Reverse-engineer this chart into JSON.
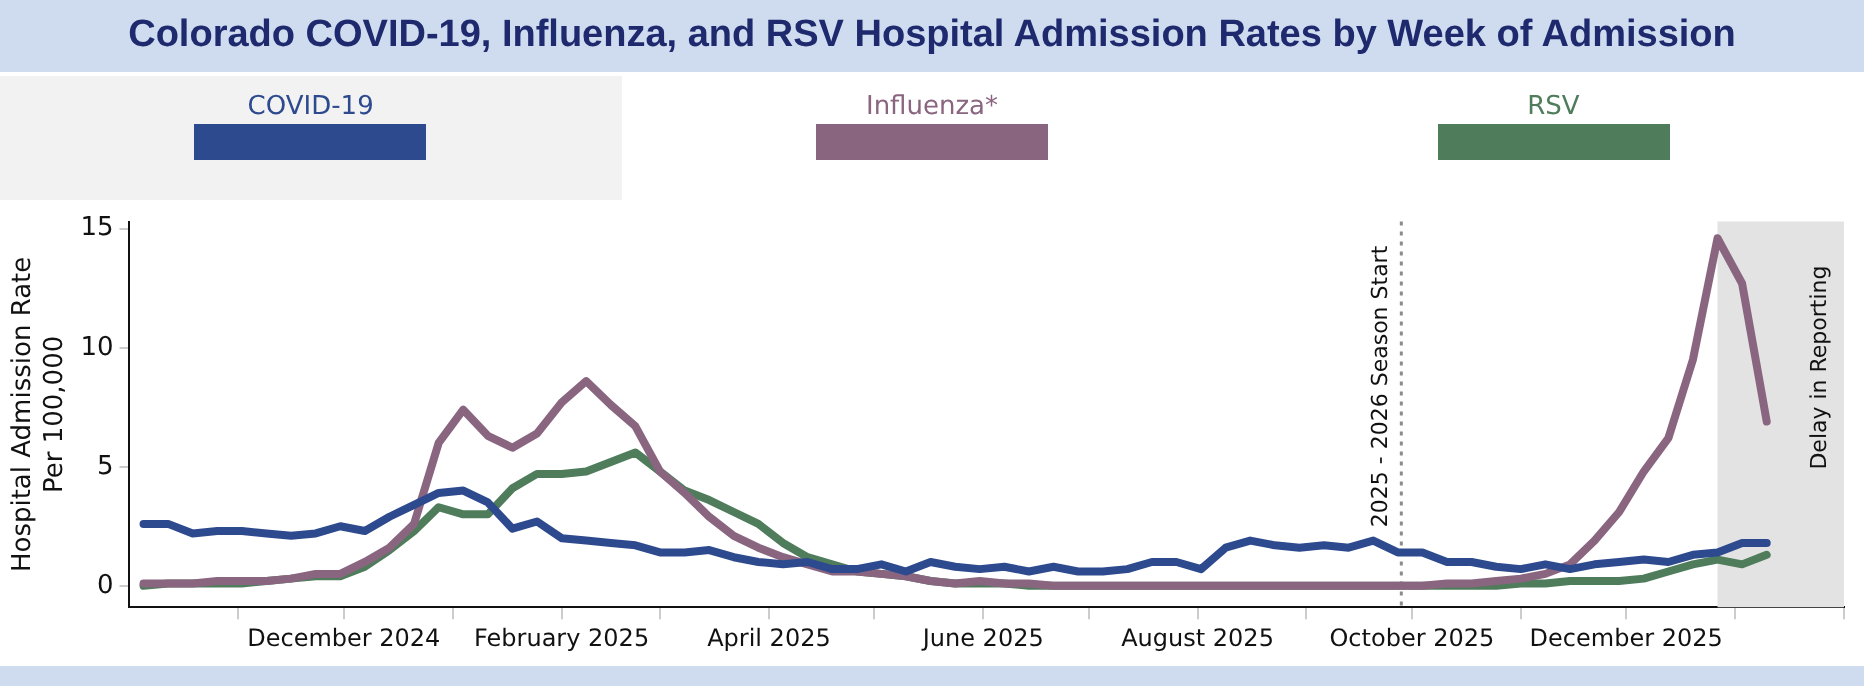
{
  "chart_data": {
    "type": "line",
    "title": "Colorado COVID-19, Influenza, and RSV Hospital Admission Rates by Week of Admission",
    "ylabel": "Hospital Admission Rate\nPer 100,000",
    "x": [
      "2024-10-05",
      "2024-10-12",
      "2024-10-19",
      "2024-10-26",
      "2024-11-02",
      "2024-11-09",
      "2024-11-16",
      "2024-11-23",
      "2024-11-30",
      "2024-12-07",
      "2024-12-14",
      "2024-12-21",
      "2024-12-28",
      "2025-01-04",
      "2025-01-11",
      "2025-01-18",
      "2025-01-25",
      "2025-02-01",
      "2025-02-08",
      "2025-02-15",
      "2025-02-22",
      "2025-03-01",
      "2025-03-08",
      "2025-03-15",
      "2025-03-22",
      "2025-03-29",
      "2025-04-05",
      "2025-04-12",
      "2025-04-19",
      "2025-04-26",
      "2025-05-03",
      "2025-05-10",
      "2025-05-17",
      "2025-05-24",
      "2025-05-31",
      "2025-06-07",
      "2025-06-14",
      "2025-06-21",
      "2025-06-28",
      "2025-07-05",
      "2025-07-12",
      "2025-07-19",
      "2025-07-26",
      "2025-08-02",
      "2025-08-09",
      "2025-08-16",
      "2025-08-23",
      "2025-08-30",
      "2025-09-06",
      "2025-09-13",
      "2025-09-20",
      "2025-09-27",
      "2025-10-04",
      "2025-10-11",
      "2025-10-18",
      "2025-10-25",
      "2025-11-01",
      "2025-11-08",
      "2025-11-15",
      "2025-11-22",
      "2025-11-29",
      "2025-12-06",
      "2025-12-13",
      "2025-12-20",
      "2025-12-27",
      "2026-01-03",
      "2026-01-10"
    ],
    "series": [
      {
        "name": "COVID-19",
        "color": "#2e4a8f",
        "values": [
          2.6,
          2.6,
          2.2,
          2.3,
          2.3,
          2.2,
          2.1,
          2.2,
          2.5,
          2.3,
          2.9,
          3.4,
          3.9,
          4.0,
          3.5,
          2.4,
          2.7,
          2.0,
          1.9,
          1.8,
          1.7,
          1.4,
          1.4,
          1.5,
          1.2,
          1.0,
          0.9,
          1.0,
          0.7,
          0.7,
          0.9,
          0.6,
          1.0,
          0.8,
          0.7,
          0.8,
          0.6,
          0.8,
          0.6,
          0.6,
          0.7,
          1.0,
          1.0,
          0.7,
          1.6,
          1.9,
          1.7,
          1.6,
          1.7,
          1.6,
          1.9,
          1.4,
          1.4,
          1.0,
          1.0,
          0.8,
          0.7,
          0.9,
          0.7,
          0.9,
          1.0,
          1.1,
          1.0,
          1.3,
          1.4,
          1.8,
          1.8
        ]
      },
      {
        "name": "Influenza*",
        "color": "#8a6580",
        "values": [
          0.1,
          0.1,
          0.1,
          0.2,
          0.2,
          0.2,
          0.3,
          0.5,
          0.5,
          1.0,
          1.6,
          2.6,
          6.0,
          7.4,
          6.3,
          5.8,
          6.4,
          7.7,
          8.6,
          7.6,
          6.7,
          4.8,
          3.9,
          2.9,
          2.1,
          1.6,
          1.2,
          0.9,
          0.6,
          0.6,
          0.5,
          0.4,
          0.2,
          0.1,
          0.2,
          0.1,
          0.1,
          0,
          0,
          0,
          0,
          0,
          0,
          0,
          0,
          0,
          0,
          0,
          0,
          0,
          0,
          0,
          0,
          0.1,
          0.1,
          0.2,
          0.3,
          0.5,
          0.9,
          1.9,
          3.1,
          4.8,
          6.2,
          9.5,
          14.6,
          12.7,
          6.9
        ]
      },
      {
        "name": "RSV",
        "color": "#4f7d5c",
        "values": [
          0,
          0.1,
          0.1,
          0.1,
          0.1,
          0.2,
          0.3,
          0.4,
          0.4,
          0.8,
          1.5,
          2.3,
          3.3,
          3.0,
          3.0,
          4.1,
          4.7,
          4.7,
          4.8,
          5.2,
          5.6,
          4.8,
          4.0,
          3.6,
          3.1,
          2.6,
          1.8,
          1.2,
          0.9,
          0.6,
          0.5,
          0.4,
          0.2,
          0.1,
          0.1,
          0.1,
          0,
          0,
          0,
          0,
          0,
          0,
          0,
          0,
          0,
          0,
          0,
          0,
          0,
          0,
          0,
          0,
          0,
          0,
          0,
          0,
          0.1,
          0.1,
          0.2,
          0.2,
          0.2,
          0.3,
          0.6,
          0.9,
          1.1,
          0.9,
          1.3
        ]
      }
    ],
    "xlim": [
      "2024-10-01",
      "2026-02-01"
    ],
    "xticks": [
      {
        "value": "2024-11-01",
        "label": null
      },
      {
        "value": "2024-12-01",
        "label": "December 2024"
      },
      {
        "value": "2025-01-01",
        "label": null
      },
      {
        "value": "2025-02-01",
        "label": "February 2025"
      },
      {
        "value": "2025-03-01",
        "label": null
      },
      {
        "value": "2025-04-01",
        "label": "April 2025"
      },
      {
        "value": "2025-05-01",
        "label": null
      },
      {
        "value": "2025-06-01",
        "label": "June 2025"
      },
      {
        "value": "2025-07-01",
        "label": null
      },
      {
        "value": "2025-08-01",
        "label": "August 2025"
      },
      {
        "value": "2025-09-01",
        "label": null
      },
      {
        "value": "2025-10-01",
        "label": "October 2025"
      },
      {
        "value": "2025-11-01",
        "label": null
      },
      {
        "value": "2025-12-01",
        "label": "December 2025"
      },
      {
        "value": "2026-01-01",
        "label": null
      },
      {
        "value": "2026-02-01",
        "label": null
      }
    ],
    "ylim": [
      -0.9,
      15.3
    ],
    "yticks": [
      0,
      5,
      10,
      15
    ],
    "ref_lines": [
      {
        "axis": "x",
        "value": "2025-09-28",
        "label": "2025 - 2026 Season Start",
        "color": "#8c8c8c",
        "line_style": "dotted"
      }
    ],
    "bands": [
      {
        "axis": "x",
        "from": "2025-12-27",
        "to": "2026-02-01",
        "label": "Delay in Reporting",
        "color": "#e3e3e3"
      }
    ],
    "grid": false,
    "legend": "top",
    "marker": "none",
    "line_style": "solid"
  }
}
